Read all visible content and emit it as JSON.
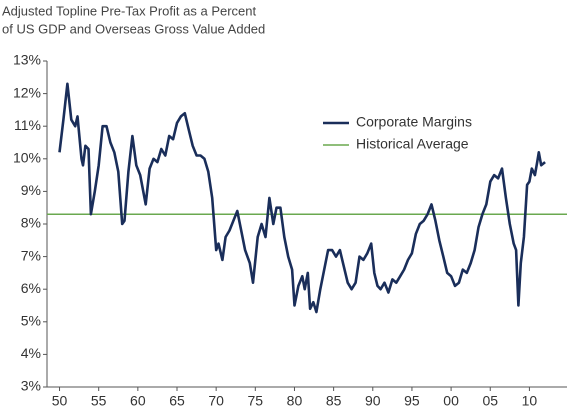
{
  "chart_data": {
    "type": "line",
    "title": [
      "Adjusted Topline Pre-Tax Profit as a Percent",
      "of US GDP and Overseas Gross Value Added"
    ],
    "series": [
      {
        "name": "Corporate Margins",
        "color": "#1a2e5a",
        "x": [
          1950,
          1950.5,
          1951,
          1951.5,
          1952,
          1952.3,
          1952.8,
          1953,
          1953.3,
          1953.7,
          1954,
          1954.5,
          1955,
          1955.5,
          1956,
          1956.5,
          1957,
          1957.5,
          1958,
          1958.3,
          1958.8,
          1959.3,
          1959.8,
          1960.3,
          1961,
          1961.5,
          1962,
          1962.5,
          1963,
          1963.5,
          1964,
          1964.5,
          1965,
          1965.5,
          1966,
          1966.5,
          1967,
          1967.5,
          1968,
          1968.5,
          1969,
          1969.5,
          1970,
          1970.3,
          1970.8,
          1971.2,
          1971.7,
          1972.2,
          1972.7,
          1973.2,
          1973.7,
          1974.3,
          1974.7,
          1975.3,
          1975.8,
          1976.3,
          1976.8,
          1977.3,
          1977.7,
          1978.2,
          1978.7,
          1979.2,
          1979.7,
          1980,
          1980.5,
          1981,
          1981.3,
          1981.7,
          1982,
          1982.4,
          1982.8,
          1983.3,
          1983.8,
          1984.3,
          1984.8,
          1985.3,
          1985.8,
          1986.3,
          1986.8,
          1987.3,
          1987.8,
          1988.3,
          1988.8,
          1989.3,
          1989.8,
          1990.2,
          1990.6,
          1991,
          1991.5,
          1992,
          1992.5,
          1993,
          1993.5,
          1994,
          1994.5,
          1995,
          1995.5,
          1996,
          1996.5,
          1997,
          1997.5,
          1998,
          1998.5,
          1999,
          1999.5,
          2000,
          2000.5,
          2001,
          2001.5,
          2002,
          2002.5,
          2003,
          2003.5,
          2004,
          2004.5,
          2005,
          2005.5,
          2006,
          2006.5,
          2007,
          2007.5,
          2008,
          2008.3,
          2008.6,
          2008.9,
          2009.3,
          2009.7,
          2010,
          2010.3,
          2010.7,
          2011,
          2011.2,
          2011.5,
          2012
        ],
        "values": [
          10.2,
          11.2,
          12.3,
          11.2,
          11.0,
          11.3,
          10.0,
          9.8,
          10.4,
          10.3,
          8.3,
          9.0,
          9.8,
          11.0,
          11.0,
          10.5,
          10.2,
          9.6,
          8.0,
          8.1,
          9.6,
          10.7,
          9.8,
          9.5,
          8.6,
          9.7,
          10.0,
          9.9,
          10.3,
          10.1,
          10.7,
          10.6,
          11.1,
          11.3,
          11.4,
          10.9,
          10.4,
          10.1,
          10.1,
          10.0,
          9.6,
          8.8,
          7.2,
          7.4,
          6.9,
          7.6,
          7.8,
          8.1,
          8.4,
          7.8,
          7.2,
          6.8,
          6.2,
          7.6,
          8.0,
          7.6,
          8.8,
          8.0,
          8.5,
          8.5,
          7.6,
          7.0,
          6.6,
          5.5,
          6.1,
          6.4,
          6.0,
          6.5,
          5.4,
          5.6,
          5.3,
          6.0,
          6.6,
          7.2,
          7.2,
          7.0,
          7.2,
          6.7,
          6.2,
          6.0,
          6.2,
          7.0,
          6.9,
          7.1,
          7.4,
          6.5,
          6.1,
          6.0,
          6.2,
          5.9,
          6.3,
          6.2,
          6.4,
          6.6,
          6.9,
          7.1,
          7.7,
          8.0,
          8.1,
          8.3,
          8.6,
          8.1,
          7.5,
          7.0,
          6.5,
          6.4,
          6.1,
          6.2,
          6.6,
          6.5,
          6.8,
          7.2,
          7.9,
          8.3,
          8.6,
          9.3,
          9.5,
          9.4,
          9.7,
          8.8,
          8.0,
          7.4,
          7.2,
          5.5,
          6.8,
          7.6,
          9.2,
          9.3,
          9.7,
          9.5,
          9.9,
          10.2,
          9.8,
          9.9
        ]
      },
      {
        "name": "Historical Average",
        "color": "#6aa84f",
        "x": [
          1948.4,
          2014.8
        ],
        "values": [
          8.3,
          8.3
        ]
      }
    ],
    "xlim": [
      1948.4,
      2014.8
    ],
    "xticks": [
      {
        "value": 1950,
        "label": "50"
      },
      {
        "value": 1955,
        "label": "55"
      },
      {
        "value": 1960,
        "label": "60"
      },
      {
        "value": 1965,
        "label": "65"
      },
      {
        "value": 1970,
        "label": "70"
      },
      {
        "value": 1975,
        "label": "75"
      },
      {
        "value": 1980,
        "label": "80"
      },
      {
        "value": 1985,
        "label": "85"
      },
      {
        "value": 1990,
        "label": "90"
      },
      {
        "value": 1995,
        "label": "95"
      },
      {
        "value": 2000,
        "label": "00"
      },
      {
        "value": 2005,
        "label": "05"
      },
      {
        "value": 2010,
        "label": "10"
      }
    ],
    "ylim": [
      3,
      13
    ],
    "yticks": [
      {
        "value": 3,
        "label": "3%"
      },
      {
        "value": 4,
        "label": "4%"
      },
      {
        "value": 5,
        "label": "5%"
      },
      {
        "value": 6,
        "label": "6%"
      },
      {
        "value": 7,
        "label": "7%"
      },
      {
        "value": 8,
        "label": "8%"
      },
      {
        "value": 9,
        "label": "9%"
      },
      {
        "value": 10,
        "label": "10%"
      },
      {
        "value": 11,
        "label": "11%"
      },
      {
        "value": 12,
        "label": "12%"
      },
      {
        "value": 13,
        "label": "13%"
      }
    ],
    "legend": "upper right",
    "grid": false
  }
}
